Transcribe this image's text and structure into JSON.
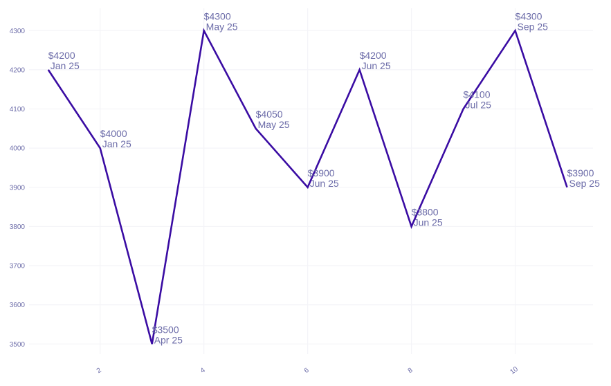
{
  "chart_data": {
    "type": "line",
    "title": "",
    "xlabel": "",
    "ylabel": "",
    "x": [
      1,
      2,
      3,
      4,
      5,
      6,
      7,
      8,
      9,
      10,
      11
    ],
    "series": [
      {
        "values": [
          4200,
          4000,
          3500,
          4300,
          4050,
          3900,
          4200,
          3800,
          4100,
          4300,
          3900
        ],
        "color": "#3a0ca3"
      }
    ],
    "point_labels": [
      {
        "price": "$4200",
        "date": "Jan 25"
      },
      {
        "price": "$4000",
        "date": "Jan 25"
      },
      {
        "price": "$3500",
        "date": "Apr 25"
      },
      {
        "price": "$4300",
        "date": "May 25"
      },
      {
        "price": "$4050",
        "date": "May 25"
      },
      {
        "price": "$3900",
        "date": "Jun 25"
      },
      {
        "price": "$4200",
        "date": "Jun 25"
      },
      {
        "price": "$3800",
        "date": "Jun 25"
      },
      {
        "price": "$4100",
        "date": "Jul 25"
      },
      {
        "price": "$4300",
        "date": "Sep 25"
      },
      {
        "price": "$3900",
        "date": "Sep 25"
      }
    ],
    "x_ticks": [
      2,
      4,
      6,
      8,
      10
    ],
    "x_tick_labels": [
      "2",
      "4",
      "6",
      "8",
      "10"
    ],
    "y_ticks": [
      3500,
      3600,
      3700,
      3800,
      3900,
      4000,
      4100,
      4200,
      4300
    ],
    "y_tick_labels": [
      "3500",
      "3600",
      "3700",
      "3800",
      "3900",
      "4000",
      "4100",
      "4200",
      "4300"
    ],
    "xlim": [
      0.63,
      11.5
    ],
    "ylim": [
      3474,
      4357
    ],
    "grid": true,
    "legend": "none",
    "colors": {
      "line": "#3a0ca3",
      "label_text": "#6b6ba8",
      "tick_text": "#6b6ba8",
      "grid": "#f4f4f8",
      "background": "#ffffff"
    }
  }
}
